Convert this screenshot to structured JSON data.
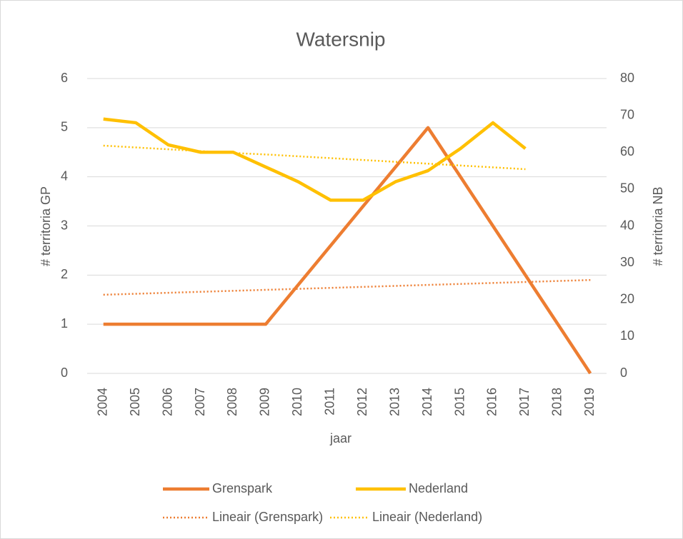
{
  "chart_data": {
    "type": "line",
    "title": "Watersnip",
    "xlabel": "jaar",
    "ylabel": "# territoria GP",
    "y2label": "# territoria NB",
    "categories": [
      "2004",
      "2005",
      "2006",
      "2007",
      "2008",
      "2009",
      "2010",
      "2011",
      "2012",
      "2013",
      "2014",
      "2015",
      "2016",
      "2017",
      "2018",
      "2019"
    ],
    "series": [
      {
        "name": "Grenspark",
        "color": "#ed7d31",
        "axis": "y",
        "style": "solid",
        "values": [
          1,
          1,
          1,
          1,
          1,
          1,
          1.8,
          2.6,
          3.4,
          4.2,
          5,
          4,
          3,
          2,
          1,
          0
        ]
      },
      {
        "name": "Nederland",
        "color": "#ffc000",
        "axis": "y2",
        "style": "solid",
        "values": [
          69,
          68,
          62,
          60,
          60,
          56,
          52,
          47,
          47,
          52,
          55,
          61,
          68,
          61,
          null,
          null
        ]
      },
      {
        "name": "Lineair (Grenspark)",
        "color": "#ed7d31",
        "axis": "y",
        "style": "dotted",
        "values": [
          1.6,
          1.62,
          1.64,
          1.66,
          1.68,
          1.7,
          1.72,
          1.74,
          1.76,
          1.78,
          1.8,
          1.82,
          1.84,
          1.86,
          1.88,
          1.9
        ]
      },
      {
        "name": "Lineair (Nederland)",
        "color": "#ffc000",
        "axis": "y2",
        "style": "dotted",
        "values": [
          61.8,
          61.3,
          60.8,
          60.3,
          59.8,
          59.4,
          58.9,
          58.4,
          57.9,
          57.4,
          56.9,
          56.4,
          55.9,
          55.4,
          null,
          null
        ]
      }
    ],
    "ylim": [
      0,
      6
    ],
    "yticks": [
      0,
      1,
      2,
      3,
      4,
      5,
      6
    ],
    "y2lim": [
      0,
      80
    ],
    "y2ticks": [
      0,
      10,
      20,
      30,
      40,
      50,
      60,
      70,
      80
    ],
    "grid": true,
    "legend": "bottom"
  }
}
